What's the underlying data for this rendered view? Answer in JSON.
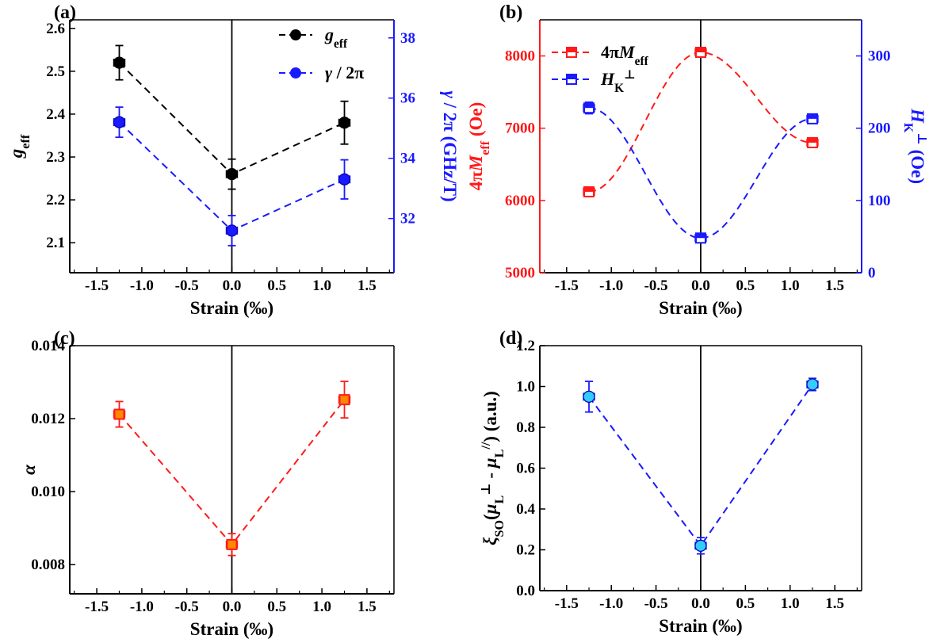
{
  "chart_data": [
    {
      "panel": "(a)",
      "type": "line",
      "x": [
        -1.25,
        0.0,
        1.25
      ],
      "xlim": [
        -1.8,
        1.8
      ],
      "xticks": [
        "-1.5",
        "-1.0",
        "-0.5",
        "0.0",
        "0.5",
        "1.0",
        "1.5"
      ],
      "xlabel": "Strain (‰)",
      "ylabel": "g_eff",
      "ylim": [
        2.03,
        2.62
      ],
      "yticks": [
        "2.1",
        "2.2",
        "2.3",
        "2.4",
        "2.5",
        "2.6"
      ],
      "y2label": "γ / 2π (GHz/T)",
      "y2lim": [
        30.2,
        38.6
      ],
      "y2ticks": [
        "32",
        "34",
        "36",
        "38"
      ],
      "legend_position": "top-right",
      "series": [
        {
          "name": "g_eff",
          "axis": "left",
          "color": "#000000",
          "marker": "circle",
          "values": [
            2.52,
            2.26,
            2.38
          ],
          "yerr": [
            0.04,
            0.035,
            0.05
          ],
          "xerr": 0.06
        },
        {
          "name": "γ / 2π",
          "axis": "right",
          "color": "#1a1aff",
          "marker": "circle",
          "values": [
            35.2,
            31.6,
            33.3
          ],
          "yerr": [
            0.5,
            0.5,
            0.65
          ],
          "xerr": 0.06
        }
      ]
    },
    {
      "panel": "(b)",
      "type": "line",
      "x": [
        -1.25,
        0.0,
        1.25
      ],
      "xlim": [
        -1.8,
        1.8
      ],
      "xticks": [
        "-1.5",
        "-1.0",
        "-0.5",
        "0.0",
        "0.5",
        "1.0",
        "1.5"
      ],
      "xlabel": "Strain (‰)",
      "ylabel": "4πM_eff (Oe)",
      "ylim": [
        5000,
        8500
      ],
      "yticks": [
        "5000",
        "6000",
        "7000",
        "8000"
      ],
      "y2label": "H_K^⊥ (Oe)",
      "y2lim": [
        0,
        350
      ],
      "y2ticks": [
        "0",
        "100",
        "200",
        "300"
      ],
      "legend_position": "top-left",
      "series": [
        {
          "name": "4πM_eff",
          "axis": "left",
          "color": "#ff1a1a",
          "marker": "square",
          "values": [
            6120,
            8050,
            6800
          ],
          "yerr": [
            60,
            40,
            40
          ],
          "xerr": 0.06
        },
        {
          "name": "H_K^⊥",
          "axis": "right",
          "color": "#1a1aff",
          "marker": "square",
          "values": [
            228,
            48,
            213
          ],
          "yerr": [
            8,
            4,
            4
          ],
          "xerr": 0.06
        }
      ]
    },
    {
      "panel": "(c)",
      "type": "line",
      "x": [
        -1.25,
        0.0,
        1.25
      ],
      "xlim": [
        -1.8,
        1.8
      ],
      "xticks": [
        "-1.5",
        "-1.0",
        "-0.5",
        "0.0",
        "0.5",
        "1.0",
        "1.5"
      ],
      "xlabel": "Strain (‰)",
      "ylabel": "α",
      "ylim": [
        0.0072,
        0.014
      ],
      "yticks": [
        "0.008",
        "0.010",
        "0.012",
        "0.014"
      ],
      "series": [
        {
          "name": "",
          "axis": "left",
          "color": "#ff1a1a",
          "marker": "square",
          "values": [
            0.01212,
            0.00855,
            0.01252
          ],
          "yerr": [
            0.00035,
            0.0003,
            0.0005
          ],
          "xerr": 0.06
        }
      ]
    },
    {
      "panel": "(d)",
      "type": "line",
      "x": [
        -1.25,
        0.0,
        1.25
      ],
      "xlim": [
        -1.8,
        1.8
      ],
      "xticks": [
        "-1.5",
        "-1.0",
        "-0.5",
        "0.0",
        "0.5",
        "1.0",
        "1.5"
      ],
      "xlabel": "Strain (‰)",
      "ylabel": "ξ_SO(μ_L^⊥ - μ_L^//) (a.u.)",
      "ylim": [
        0.0,
        1.2
      ],
      "yticks": [
        "0.0",
        "0.2",
        "0.4",
        "0.6",
        "0.8",
        "1.0",
        "1.2"
      ],
      "series": [
        {
          "name": "",
          "axis": "left",
          "color": "#1a1aff",
          "marker": "circle",
          "values": [
            0.95,
            0.22,
            1.01
          ],
          "yerr": [
            0.075,
            0.04,
            0.03
          ],
          "xerr": 0.06
        }
      ]
    }
  ]
}
